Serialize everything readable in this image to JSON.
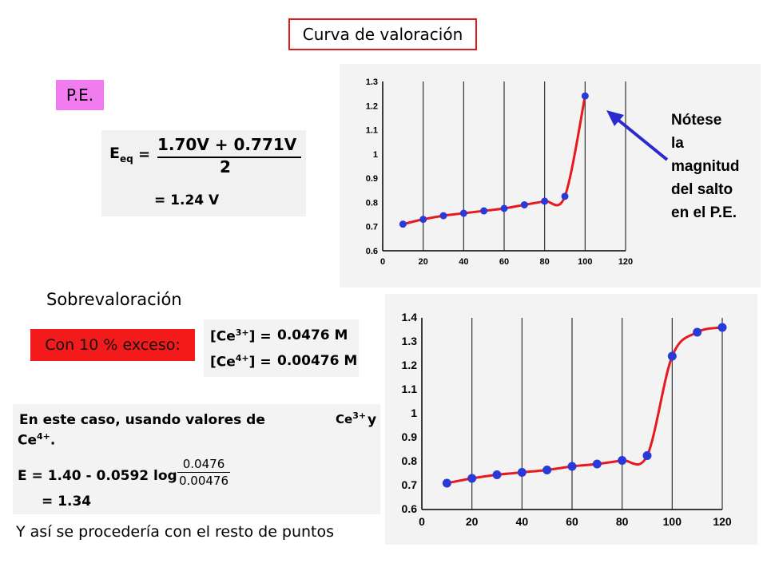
{
  "title": "Curva de valoración",
  "pe_label": "P.E.",
  "equation": {
    "lhs": "E",
    "lhs_sub": "eq",
    "equals": "=",
    "numerator": "1.70V + 0.771V",
    "denominator": "2",
    "result": "= 1.24 V"
  },
  "sobre_label": "Sobrevaloración",
  "exceso_label": "Con 10 % exceso:",
  "concentrations": [
    {
      "ion": "[Ce",
      "charge": "3+",
      "close": "]  =",
      "value": "0.0476 M"
    },
    {
      "ion": "[Ce",
      "charge": "4+",
      "close": "]  =",
      "value": "0.00476 M"
    }
  ],
  "caso": {
    "line1": "En este caso, usando valores de",
    "ce3": "Ce",
    "ce3_charge": "3+",
    "y": "y",
    "ce4": "Ce",
    "ce4_charge": "4+",
    "ce4_end": ".",
    "formula": "E = 1.40 - 0.0592 log",
    "frac_num": "0.0476",
    "frac_den": "0.00476",
    "result": "= 1.34"
  },
  "footer": "Y así se procedería con el resto de puntos",
  "colors": {
    "curve": "#e8191e",
    "point": "#2a3ad8",
    "arrow": "#2a2ad0",
    "grid": "#333333"
  },
  "chart_data": [
    {
      "type": "line",
      "x": [
        10,
        20,
        30,
        40,
        50,
        60,
        70,
        80,
        90,
        100
      ],
      "y": [
        0.71,
        0.73,
        0.745,
        0.755,
        0.765,
        0.775,
        0.79,
        0.805,
        0.825,
        1.24
      ],
      "xlim": [
        0,
        120
      ],
      "ylim": [
        0.6,
        1.3
      ],
      "xticks": [
        "0",
        "20",
        "40",
        "60",
        "80",
        "100",
        "120"
      ],
      "yticks": [
        "0.6",
        "0.7",
        "0.8",
        "0.9",
        "1",
        "1.1",
        "1.2",
        "1.3"
      ],
      "annotation": "Nótese la magnitud del salto en el P.E.",
      "annotation_lines": [
        "Nótese",
        "la",
        "magnitud",
        "del salto",
        "en el P.E."
      ],
      "grid": "vertical"
    },
    {
      "type": "line",
      "x": [
        10,
        20,
        30,
        40,
        50,
        60,
        70,
        80,
        90,
        100,
        110,
        120
      ],
      "y": [
        0.71,
        0.73,
        0.745,
        0.755,
        0.765,
        0.78,
        0.79,
        0.805,
        0.825,
        1.24,
        1.34,
        1.36
      ],
      "xlim": [
        0,
        120
      ],
      "ylim": [
        0.6,
        1.4
      ],
      "xticks": [
        "0",
        "20",
        "40",
        "60",
        "80",
        "100",
        "120"
      ],
      "yticks": [
        "0.6",
        "0.7",
        "0.8",
        "0.9",
        "1",
        "1.1",
        "1.2",
        "1.3",
        "1.4"
      ],
      "grid": "vertical"
    }
  ]
}
